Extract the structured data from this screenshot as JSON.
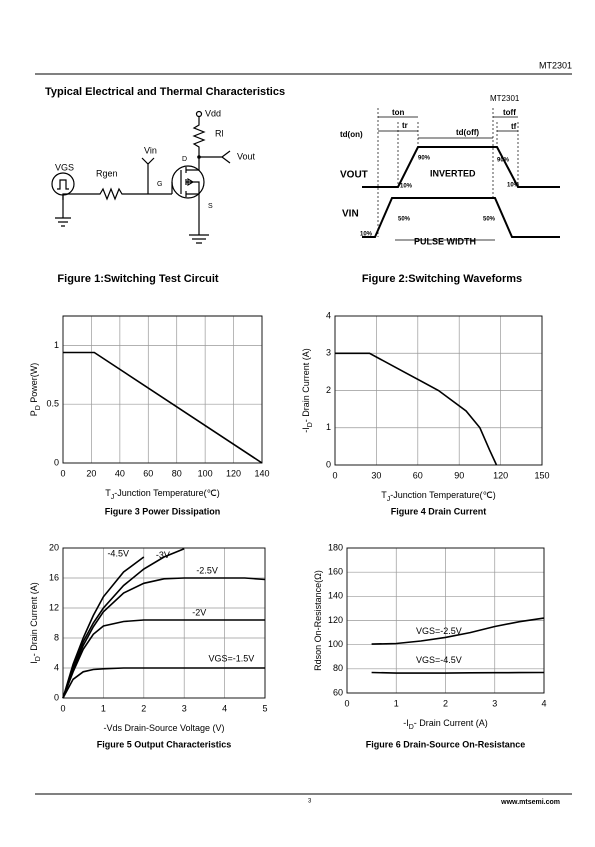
{
  "header": {
    "part": "MT2301"
  },
  "section_title": "Typical Electrical and Thermal Characteristics",
  "figure1": {
    "caption": "Figure 1:Switching Test Circuit",
    "labels": {
      "vdd": "Vdd",
      "rl": "Rl",
      "vin": "Vin",
      "vout": "Vout",
      "d": "D",
      "g": "G",
      "s": "S",
      "rgen": "Rgen",
      "vgs": "VGS"
    }
  },
  "figure2": {
    "caption": "Figure 2:Switching Waveforms",
    "labels": {
      "part": "MT2301",
      "tdon": "td(on)",
      "ton": "ton",
      "tr": "tr",
      "tdoff": "td(off)",
      "toff": "toff",
      "tf": "tf",
      "vout": "VOUT",
      "vin": "VIN",
      "p90a": "90%",
      "p10a": "10%",
      "inverted": "INVERTED",
      "p10b": "10%",
      "p90b": "90%",
      "p50a": "50%",
      "p50b": "50%",
      "p10c": "10%",
      "pulse": "PULSE WIDTH"
    }
  },
  "chart_data": [
    {
      "type": "line",
      "caption": "Figure 3 Power Dissipation",
      "xlabel": [
        "T",
        "J",
        "-Junction Temperature(℃)"
      ],
      "ylabel": [
        "P",
        "D",
        " Power(W)"
      ],
      "series": [
        {
          "x": [
            0,
            22,
            140
          ],
          "values": [
            0.94,
            0.94,
            0
          ],
          "color": "#000000"
        }
      ],
      "xlim": [
        0,
        140
      ],
      "xticks": [
        0,
        20,
        40,
        60,
        80,
        100,
        120,
        140
      ],
      "ylim": [
        0,
        1.25
      ],
      "yticks": [
        0,
        0.5,
        1
      ],
      "grid": true
    },
    {
      "type": "line",
      "caption": "Figure 4 Drain Current",
      "xlabel": [
        "T",
        "J",
        "-Junction Temperature(℃)"
      ],
      "ylabel": [
        "-I",
        "D",
        "- Drain Current (A)"
      ],
      "series": [
        {
          "x": [
            0,
            25,
            50,
            75,
            95,
            105,
            112,
            117
          ],
          "values": [
            3,
            3,
            2.5,
            2,
            1.45,
            1,
            0.4,
            0
          ],
          "color": "#000000"
        }
      ],
      "xlim": [
        0,
        150
      ],
      "xticks": [
        0,
        30,
        60,
        90,
        120,
        150
      ],
      "ylim": [
        0,
        4
      ],
      "yticks": [
        0,
        1,
        2,
        3,
        4
      ],
      "grid": true
    },
    {
      "type": "line",
      "caption": "Figure 5 Output Characteristics",
      "xlabel": [
        "-Vds Drain-Source Voltage (V)"
      ],
      "ylabel": [
        "I",
        "D",
        "- Drain Current (A)"
      ],
      "x": [
        0,
        0.25,
        0.5,
        0.75,
        1,
        1.5,
        2,
        2.5,
        3,
        3.5,
        4,
        4.5,
        5
      ],
      "series": [
        {
          "name": "-4.5V",
          "color": "#000000",
          "values": [
            0,
            4.5,
            8,
            11,
            13.5,
            16.8,
            18.8,
            null,
            null,
            null,
            null,
            null,
            null
          ]
        },
        {
          "name": "-3V",
          "color": "#000000",
          "values": [
            0,
            4,
            7.5,
            10,
            12,
            15,
            17.2,
            18.8,
            19.9,
            null,
            null,
            null,
            null
          ]
        },
        {
          "name": "-2.5V",
          "color": "#000000",
          "values": [
            0,
            3.8,
            7,
            9.5,
            11.5,
            14,
            15.3,
            15.9,
            16,
            16,
            16,
            16,
            15.8
          ]
        },
        {
          "name": "-2V",
          "color": "#000000",
          "values": [
            0,
            3.5,
            6.5,
            8.5,
            9.6,
            10.2,
            10.4,
            10.4,
            10.4,
            10.4,
            10.4,
            10.4,
            10.4
          ]
        },
        {
          "name": "VGS=-1.5V",
          "color": "#000000",
          "values": [
            0,
            2.5,
            3.5,
            3.8,
            3.9,
            4,
            4,
            4,
            4,
            4,
            4,
            4,
            4
          ]
        }
      ],
      "xlim": [
        0,
        5
      ],
      "xticks": [
        0,
        1,
        2,
        3,
        4,
        5
      ],
      "ylim": [
        0,
        20
      ],
      "yticks": [
        0,
        4,
        8,
        12,
        16,
        20
      ],
      "grid": true
    },
    {
      "type": "line",
      "caption": "Figure 6 Drain-Source On-Resistance",
      "xlabel": [
        "-I",
        "D",
        "- Drain Current (A)"
      ],
      "ylabel": [
        "Rdson On-Resistance(Ω)"
      ],
      "x": [
        0.5,
        1,
        1.5,
        2,
        2.5,
        3,
        3.5,
        4
      ],
      "series": [
        {
          "name": "VGS=-2.5V",
          "color": "#000000",
          "values": [
            100.5,
            101,
            103,
            106,
            110,
            115,
            119,
            122
          ]
        },
        {
          "name": "VGS=-4.5V",
          "color": "#000000",
          "values": [
            77,
            76.5,
            76.5,
            76.5,
            76.7,
            76.8,
            76.9,
            77
          ]
        }
      ],
      "xlim": [
        0,
        4
      ],
      "xticks": [
        0,
        1,
        2,
        3,
        4
      ],
      "ylim": [
        60,
        180
      ],
      "yticks": [
        60,
        80,
        100,
        120,
        140,
        160,
        180
      ],
      "grid": true
    }
  ],
  "footer": {
    "page": "3",
    "site": "www.mtsemi.com"
  }
}
